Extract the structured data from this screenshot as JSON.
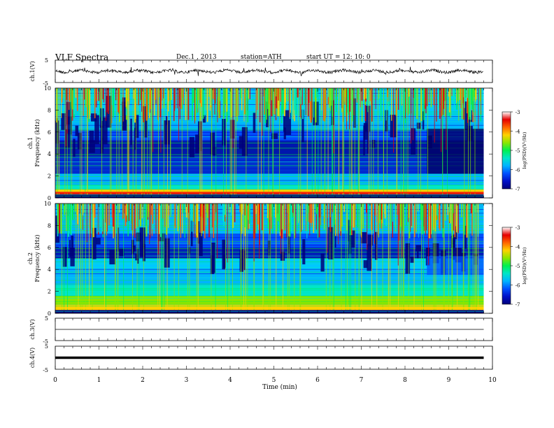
{
  "header": {
    "title": "VLF  Spectra",
    "date": "Dec.1  , 2013",
    "station": "station=ATH",
    "start": "start  UT  =   12: 10: 0"
  },
  "chart_data": [
    {
      "type": "line",
      "panel": "ch1-waveform",
      "ylabel": "ch.1(V)",
      "ylim": [
        -5,
        5
      ],
      "yticks": [
        "5",
        "-5"
      ],
      "xlim": [
        0,
        10
      ],
      "trace_end_min": 9.8,
      "baseline_v": 0.0,
      "color": "#000000"
    },
    {
      "type": "heatmap",
      "panel": "ch1-spectrogram",
      "ylabel": [
        "ch.1",
        "Frequency  (kHz)"
      ],
      "ylim": [
        0,
        10
      ],
      "yticks": [
        "0",
        "2",
        "4",
        "6",
        "8",
        "10"
      ],
      "xlim": [
        0,
        10
      ],
      "data_end_min": 9.8,
      "colorbar": {
        "label": "log(PSD)(V²/Hz)",
        "range": [
          -7,
          -3
        ],
        "ticks": [
          "-3",
          "-4",
          "-5",
          "-6",
          "-7"
        ]
      }
    },
    {
      "type": "heatmap",
      "panel": "ch2-spectrogram",
      "ylabel": [
        "ch.2",
        "Frequency  (kHz)"
      ],
      "ylim": [
        0,
        10
      ],
      "yticks": [
        "0",
        "2",
        "4",
        "6",
        "8",
        "10"
      ],
      "xlim": [
        0,
        10
      ],
      "data_end_min": 9.8,
      "colorbar": {
        "label": "log(PSD)(V²/Hz)",
        "range": [
          -7,
          -3
        ],
        "ticks": [
          "-3",
          "-4",
          "-5",
          "-6",
          "-7"
        ]
      }
    },
    {
      "type": "line",
      "panel": "ch3-waveform",
      "ylabel": "ch.3(V)",
      "ylim": [
        -5,
        5
      ],
      "yticks": [
        "5",
        "-5"
      ],
      "xlim": [
        0,
        10
      ],
      "trace_end_min": 9.8,
      "baseline_v": 0.0
    },
    {
      "type": "line",
      "panel": "ch4-waveform",
      "ylabel": "ch.4(V)",
      "ylim": [
        -5,
        5
      ],
      "yticks": [
        "5",
        "-5"
      ],
      "xlim": [
        0,
        10
      ],
      "trace_end_min": 9.8,
      "baseline_v": 0.0
    }
  ],
  "xaxis": {
    "label": "Time  (min)",
    "ticks": [
      "0",
      "1",
      "2",
      "3",
      "4",
      "5",
      "6",
      "7",
      "8",
      "9",
      "10"
    ]
  },
  "colors": {
    "colormap": [
      "#00007a",
      "#0010c8",
      "#0050ff",
      "#00b4ff",
      "#00e6c8",
      "#00f050",
      "#8ce600",
      "#ffd200",
      "#ff6400",
      "#e60000",
      "#ffffff"
    ],
    "axis": "#000000"
  }
}
